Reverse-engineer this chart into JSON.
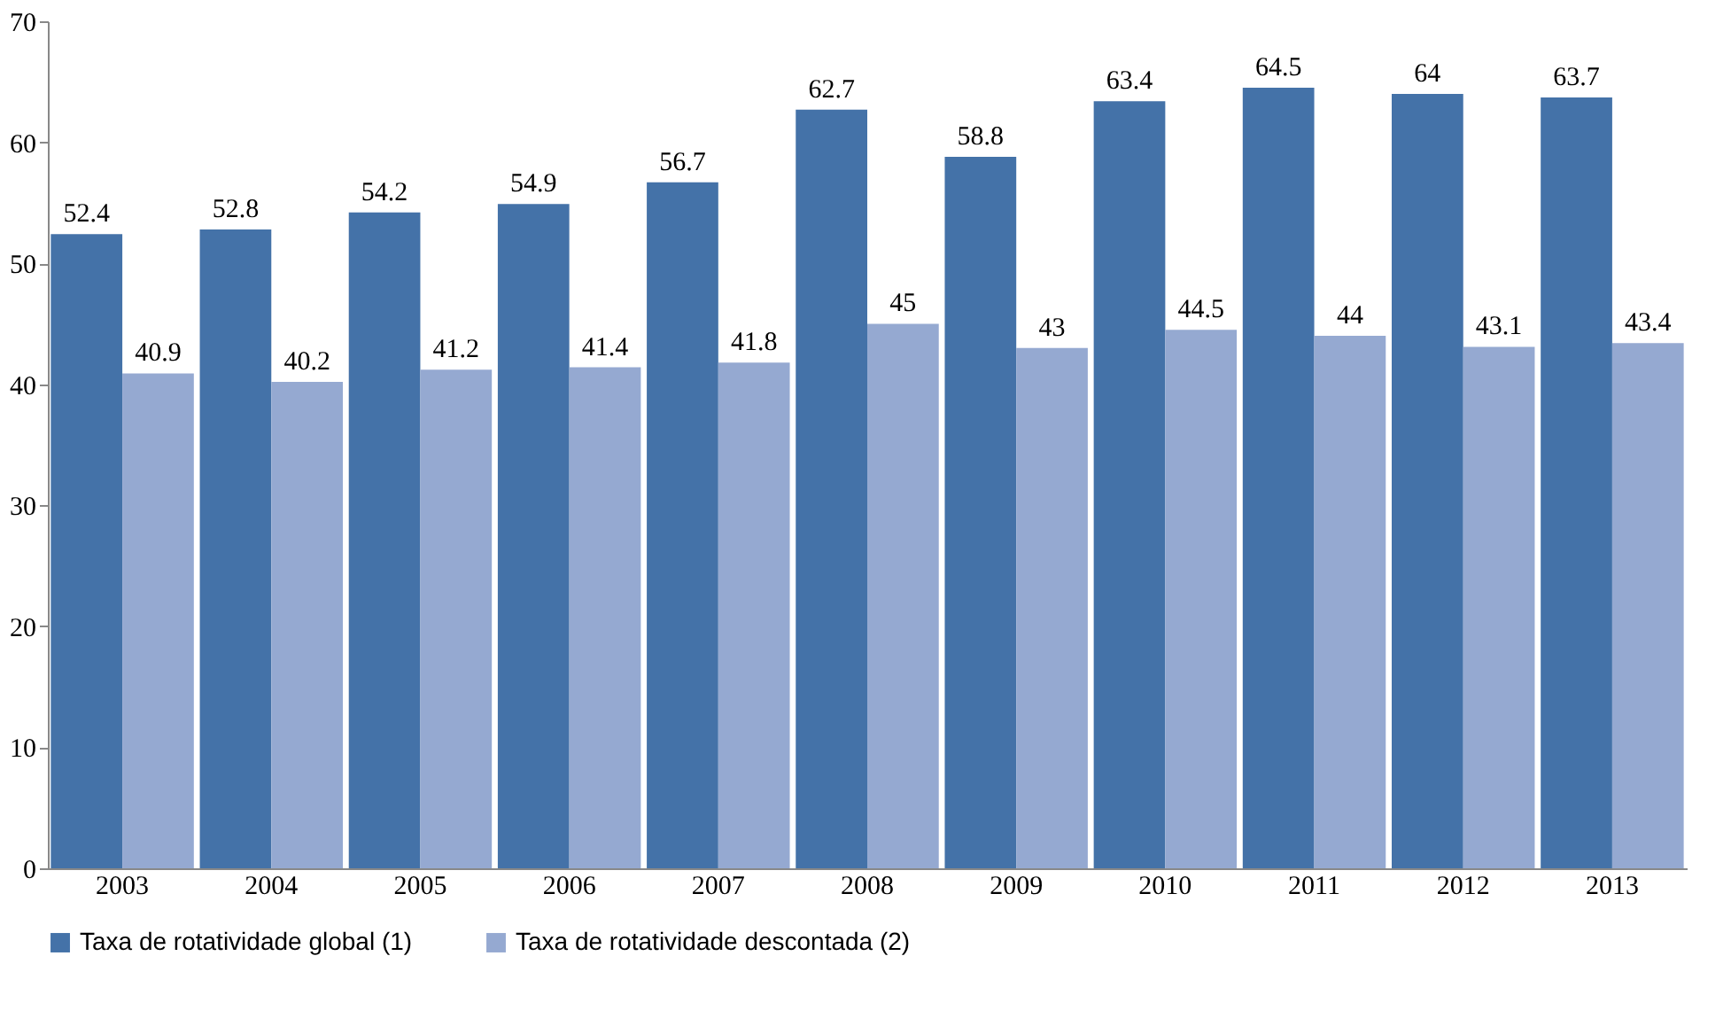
{
  "chart_data": {
    "type": "bar",
    "categories": [
      "2003",
      "2004",
      "2005",
      "2006",
      "2007",
      "2008",
      "2009",
      "2010",
      "2011",
      "2012",
      "2013"
    ],
    "series": [
      {
        "name": "Taxa de rotatividade global (1)",
        "color": "#4472a8",
        "values": [
          52.4,
          52.8,
          54.2,
          54.9,
          56.7,
          62.7,
          58.8,
          63.4,
          64.5,
          64,
          63.7
        ]
      },
      {
        "name": "Taxa de rotatividade descontada (2)",
        "color": "#95a9d1",
        "values": [
          40.9,
          40.2,
          41.2,
          41.4,
          41.8,
          45,
          43,
          44.5,
          44,
          43.1,
          43.4
        ]
      }
    ],
    "ylim": [
      0,
      70
    ],
    "yticks": [
      0,
      10,
      20,
      30,
      40,
      50,
      60,
      70
    ],
    "grid": false,
    "legend": "bottom",
    "data_labels": true
  }
}
